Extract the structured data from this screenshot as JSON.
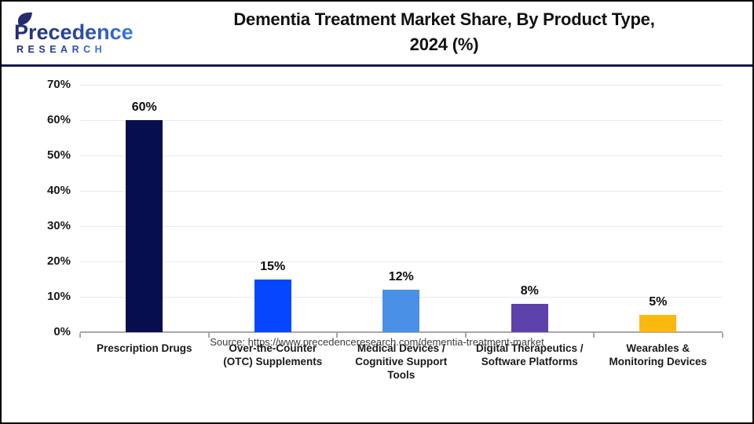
{
  "header": {
    "logo_line1": "Precedence",
    "logo_line2": "RESEARCH",
    "title_line1": "Dementia Treatment Market Share, By Product Type,",
    "title_line2": "2024 (%)"
  },
  "chart_data": {
    "type": "bar",
    "title": "Dementia Treatment Market Share, By Product Type, 2024 (%)",
    "categories": [
      "Prescription Drugs",
      "Over-the-Counter (OTC) Supplements",
      "Medical Devices / Cognitive Support Tools",
      "Digital Therapeutics / Software Platforms",
      "Wearables & Monitoring Devices"
    ],
    "category_lines": [
      [
        "Prescription Drugs"
      ],
      [
        "Over-the-Counter",
        "(OTC) Supplements"
      ],
      [
        "Medical Devices /",
        "Cognitive Support",
        "Tools"
      ],
      [
        "Digital Therapeutics /",
        "Software Platforms"
      ],
      [
        "Wearables &",
        "Monitoring Devices"
      ]
    ],
    "values": [
      60,
      15,
      12,
      8,
      5
    ],
    "value_labels": [
      "60%",
      "15%",
      "12%",
      "8%",
      "5%"
    ],
    "bar_colors": [
      "#060e4f",
      "#0546ff",
      "#4a90e6",
      "#5c42a9",
      "#fab810"
    ],
    "yticks": [
      "0%",
      "10%",
      "20%",
      "30%",
      "40%",
      "50%",
      "60%",
      "70%"
    ],
    "ylim": [
      0,
      70
    ],
    "ytick_step": 10,
    "grid": true,
    "legend_position": "none",
    "xlabel": "",
    "ylabel": ""
  },
  "colors": {
    "header_border": "#14184e",
    "axis": "#a8a8a8",
    "gridline": "#e9e9e9",
    "title_text": "#111111",
    "source_text": "#3c3c3c",
    "logo_navy": "#232c6d",
    "logo_blue": "#3e7bd8"
  },
  "footer": {
    "source": "Source: https://www.precedenceresearch.com/dementia-treatment-market"
  }
}
